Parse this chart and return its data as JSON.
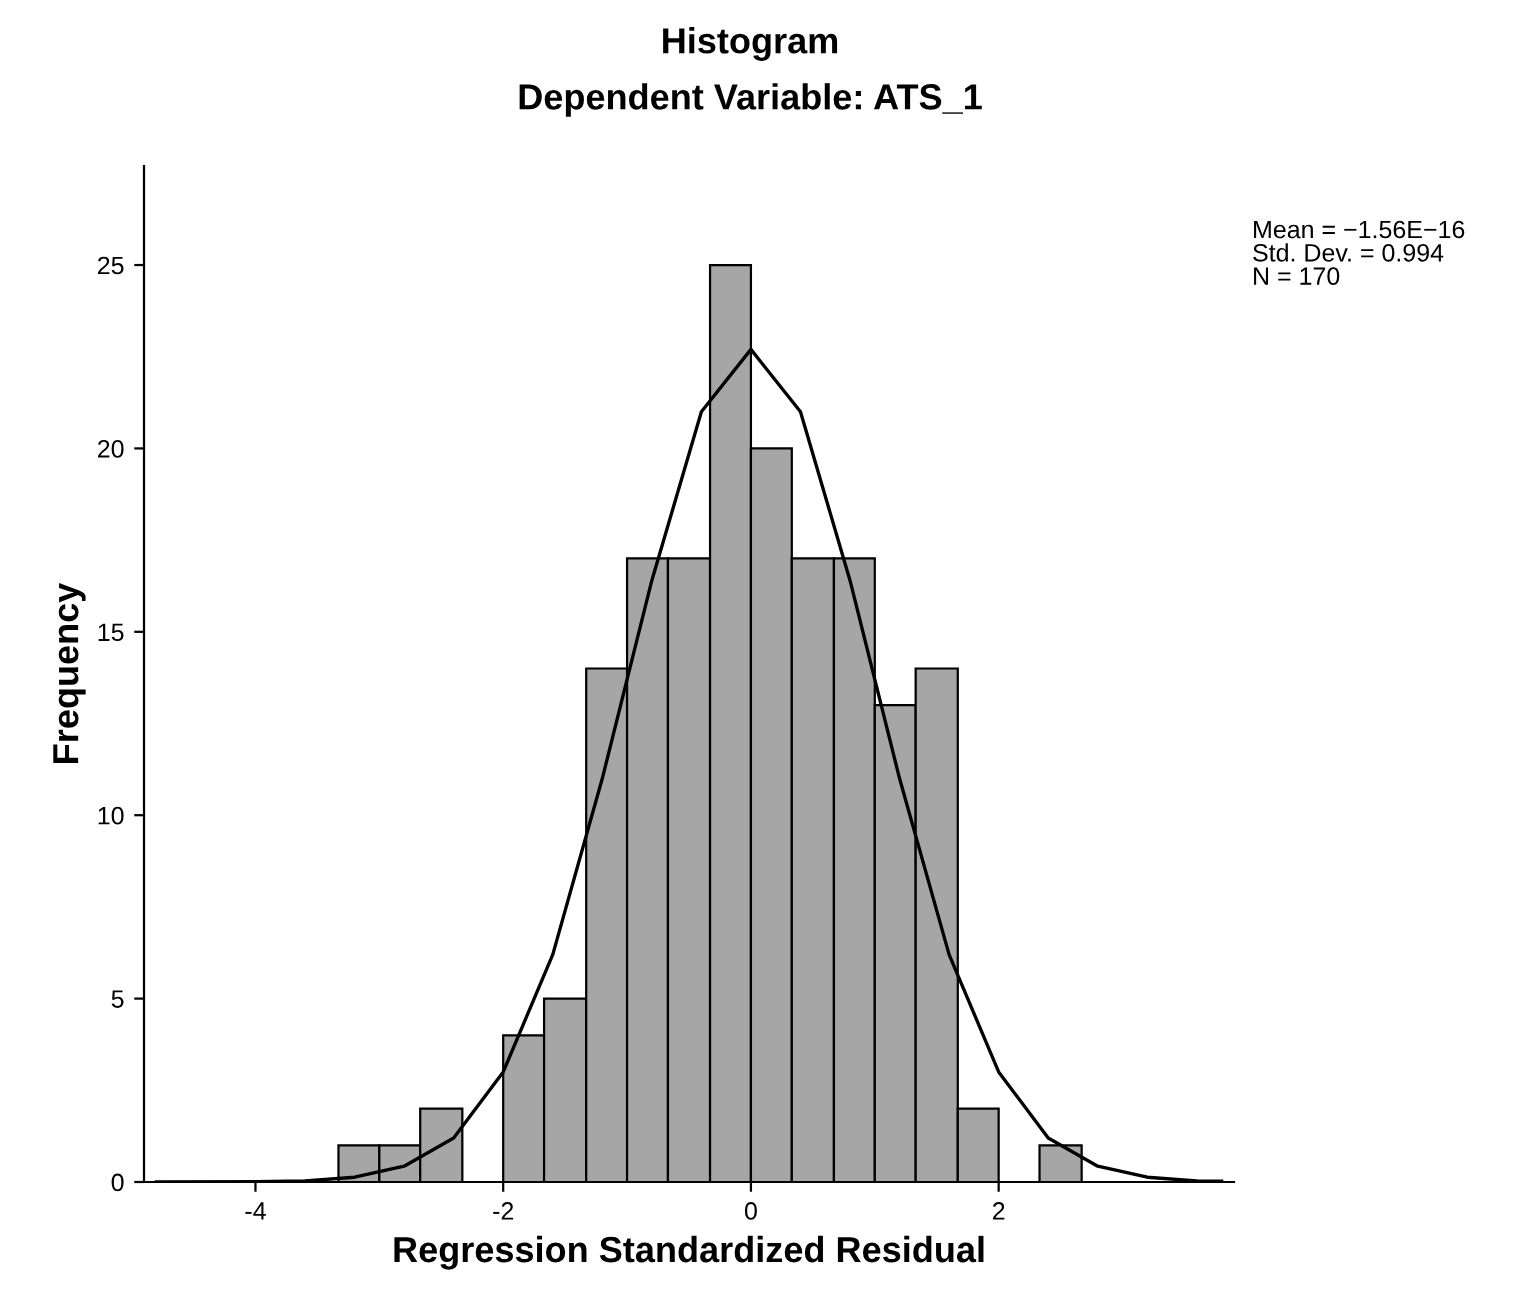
{
  "chart_data": {
    "type": "histogram",
    "title": "Histogram",
    "subtitle": "Dependent Variable: ATS_1",
    "xlabel": "Regression Standardized Residual",
    "ylabel": "Frequency",
    "bins": [
      -3.33,
      -3.0,
      -2.67,
      -2.33,
      -2.0,
      -1.67,
      -1.33,
      -1.0,
      -0.67,
      -0.33,
      0.0,
      0.33,
      0.67,
      1.0,
      1.33,
      1.67,
      2.0,
      2.33,
      2.67
    ],
    "values": [
      1,
      1,
      2,
      0,
      4,
      5,
      14,
      17,
      17,
      25,
      20,
      17,
      17,
      13,
      14,
      2,
      0,
      1
    ],
    "color": "#a6a6a6",
    "series": [
      {
        "type": "line",
        "color": "#000000",
        "x": [
          -4.8,
          -4.0,
          -3.6,
          -3.2,
          -2.8,
          -2.4,
          -2.0,
          -1.6,
          -1.2,
          -0.8,
          -0.4,
          0.0,
          0.4,
          0.8,
          1.2,
          1.6,
          2.0,
          2.4,
          2.8,
          3.2,
          3.6,
          3.8
        ],
        "values": [
          0.0,
          0.01,
          0.03,
          0.13,
          0.43,
          1.2,
          3.0,
          6.2,
          11.0,
          16.4,
          21.0,
          22.7,
          21.0,
          16.4,
          11.0,
          6.2,
          3.0,
          1.2,
          0.43,
          0.13,
          0.03,
          0.02
        ]
      }
    ],
    "xlim": [
      -4.9,
      3.9
    ],
    "ylim": [
      0,
      27.7
    ],
    "xticks": [
      -4,
      -2,
      0,
      2
    ],
    "yticks": [
      0,
      5,
      10,
      15,
      20,
      25
    ],
    "grid": false,
    "legend": false,
    "annotations": [
      "Mean = −1.56E−16\nStd. Dev. = 0.994\nN = 170"
    ]
  }
}
